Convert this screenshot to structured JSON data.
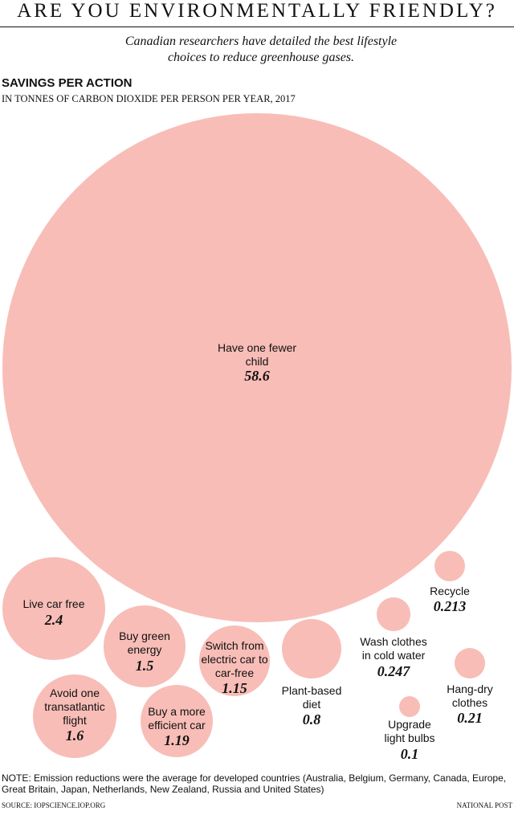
{
  "chart_data": {
    "type": "bubble",
    "title": "ARE YOU ENVIRONMENTALLY FRIENDLY?",
    "subtitle": "Canadian researchers have detailed the best lifestyle choices to reduce greenhouse gases.",
    "heading": "SAVINGS PER ACTION",
    "units": "IN TONNES OF CARBON DIOXIDE PER PERSON PER YEAR, 2017",
    "categories": [
      "Have one fewer child",
      "Live car free",
      "Avoid one transatlantic flight",
      "Buy green energy",
      "Buy a more efficient car",
      "Switch from electric car to car-free",
      "Plant-based diet",
      "Wash clothes in cold water",
      "Recycle",
      "Hang-dry clothes",
      "Upgrade light bulbs"
    ],
    "values": [
      58.6,
      2.4,
      1.6,
      1.5,
      1.19,
      1.15,
      0.8,
      0.247,
      0.213,
      0.21,
      0.1
    ],
    "color": "#f8bdb7",
    "note": "NOTE: Emission reductions were the average for developed countries (Australia, Belgium, Germany, Canada, Europe, Great Britain, Japan, Netherlands, New Zealand, Russia and United States)",
    "source": "SOURCE: IOPSCIENCE.IOP.ORG",
    "credit": "NATIONAL POST"
  }
}
